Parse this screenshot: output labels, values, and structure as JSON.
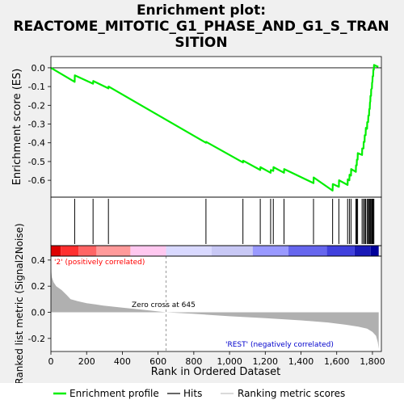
{
  "title_lines": [
    "Enrichment plot:",
    "REACTOME_MITOTIC_G1_PHASE_AND_G1_S_TRAN",
    "SITION"
  ],
  "colors": {
    "es_line": "#00ee00",
    "hits": "#000000",
    "metric_fill": "#b0b0b0",
    "pos_text": "#ff0000",
    "neg_text": "#0000cc",
    "zero_line": "#808080"
  },
  "chart_data": [
    {
      "type": "line",
      "name": "enrichment_profile",
      "ylabel": "Enrichment score (ES)",
      "xlim": [
        0,
        1850
      ],
      "ylim": [
        -0.69,
        0.06
      ],
      "y_ticks": [
        0.0,
        -0.1,
        -0.2,
        -0.3,
        -0.4,
        -0.5,
        -0.6
      ],
      "y_tick_labels": [
        "0.0",
        "-0.1",
        "-0.2",
        "-0.3",
        "-0.4",
        "-0.5",
        "-0.6"
      ],
      "zero_line": true,
      "points": [
        [
          0,
          0.0
        ],
        [
          133,
          -0.075
        ],
        [
          134,
          -0.04
        ],
        [
          236,
          -0.085
        ],
        [
          237,
          -0.07
        ],
        [
          322,
          -0.11
        ],
        [
          323,
          -0.1
        ],
        [
          868,
          -0.4
        ],
        [
          869,
          -0.395
        ],
        [
          1075,
          -0.505
        ],
        [
          1076,
          -0.495
        ],
        [
          1172,
          -0.545
        ],
        [
          1173,
          -0.53
        ],
        [
          1230,
          -0.56
        ],
        [
          1231,
          -0.545
        ],
        [
          1245,
          -0.55
        ],
        [
          1246,
          -0.53
        ],
        [
          1305,
          -0.56
        ],
        [
          1306,
          -0.54
        ],
        [
          1470,
          -0.615
        ],
        [
          1471,
          -0.585
        ],
        [
          1577,
          -0.655
        ],
        [
          1578,
          -0.62
        ],
        [
          1612,
          -0.635
        ],
        [
          1613,
          -0.6
        ],
        [
          1661,
          -0.625
        ],
        [
          1662,
          -0.595
        ],
        [
          1671,
          -0.6
        ],
        [
          1672,
          -0.57
        ],
        [
          1680,
          -0.575
        ],
        [
          1681,
          -0.54
        ],
        [
          1707,
          -0.555
        ],
        [
          1708,
          -0.52
        ],
        [
          1712,
          -0.52
        ],
        [
          1713,
          -0.49
        ],
        [
          1717,
          -0.49
        ],
        [
          1718,
          -0.455
        ],
        [
          1742,
          -0.465
        ],
        [
          1743,
          -0.43
        ],
        [
          1750,
          -0.43
        ],
        [
          1751,
          -0.395
        ],
        [
          1756,
          -0.395
        ],
        [
          1757,
          -0.36
        ],
        [
          1762,
          -0.36
        ],
        [
          1763,
          -0.32
        ],
        [
          1770,
          -0.325
        ],
        [
          1771,
          -0.29
        ],
        [
          1776,
          -0.29
        ],
        [
          1777,
          -0.255
        ],
        [
          1781,
          -0.255
        ],
        [
          1782,
          -0.22
        ],
        [
          1785,
          -0.22
        ],
        [
          1786,
          -0.185
        ],
        [
          1788,
          -0.18
        ],
        [
          1789,
          -0.15
        ],
        [
          1792,
          -0.15
        ],
        [
          1793,
          -0.115
        ],
        [
          1797,
          -0.11
        ],
        [
          1798,
          -0.08
        ],
        [
          1800,
          -0.075
        ],
        [
          1801,
          -0.045
        ],
        [
          1804,
          -0.045
        ],
        [
          1805,
          -0.01
        ],
        [
          1808,
          -0.01
        ],
        [
          1809,
          0.015
        ],
        [
          1833,
          0.005
        ]
      ]
    },
    {
      "type": "hits",
      "name": "hits",
      "xlim": [
        0,
        1850
      ],
      "positions": [
        133,
        236,
        322,
        868,
        1075,
        1172,
        1230,
        1245,
        1305,
        1470,
        1577,
        1612,
        1661,
        1671,
        1680,
        1707,
        1712,
        1717,
        1742,
        1750,
        1756,
        1762,
        1770,
        1776,
        1781,
        1785,
        1788,
        1792,
        1797,
        1800,
        1804,
        1808
      ]
    },
    {
      "type": "heatmap",
      "name": "rank_color_bar",
      "xlim": [
        0,
        1850
      ],
      "segments": [
        {
          "from": 0,
          "to": 55,
          "color": "#dd0000"
        },
        {
          "from": 55,
          "to": 155,
          "color": "#ff3030"
        },
        {
          "from": 155,
          "to": 255,
          "color": "#ff6464"
        },
        {
          "from": 255,
          "to": 445,
          "color": "#ff9a9a"
        },
        {
          "from": 445,
          "to": 645,
          "color": "#ffc8f0"
        },
        {
          "from": 645,
          "to": 900,
          "color": "#d9d9ff"
        },
        {
          "from": 900,
          "to": 1130,
          "color": "#c8c8f5"
        },
        {
          "from": 1130,
          "to": 1330,
          "color": "#9999ff"
        },
        {
          "from": 1330,
          "to": 1545,
          "color": "#6666ee"
        },
        {
          "from": 1545,
          "to": 1700,
          "color": "#4040dd"
        },
        {
          "from": 1700,
          "to": 1790,
          "color": "#1a1ab8"
        },
        {
          "from": 1790,
          "to": 1835,
          "color": "#00009a"
        }
      ]
    },
    {
      "type": "area",
      "name": "ranked_list_metric",
      "xlabel": "Rank in Ordered Dataset",
      "ylabel": "Ranked list metric (Signal2Noise)",
      "xlim": [
        0,
        1850
      ],
      "ylim": [
        -0.3,
        0.43
      ],
      "x_ticks": [
        0,
        200,
        400,
        600,
        800,
        1000,
        1200,
        1400,
        1600,
        1800
      ],
      "x_tick_labels": [
        "0",
        "200",
        "400",
        "600",
        "800",
        "1,000",
        "1,200",
        "1,400",
        "1,600",
        "1,800"
      ],
      "y_ticks": [
        0.4,
        0.2,
        0.0,
        -0.2
      ],
      "y_tick_labels": [
        "0.4",
        "0.2",
        "0.0",
        "-0.2"
      ],
      "points": [
        [
          0,
          0.34
        ],
        [
          5,
          0.27
        ],
        [
          15,
          0.23
        ],
        [
          30,
          0.2
        ],
        [
          60,
          0.17
        ],
        [
          90,
          0.13
        ],
        [
          110,
          0.1
        ],
        [
          150,
          0.085
        ],
        [
          200,
          0.07
        ],
        [
          250,
          0.06
        ],
        [
          300,
          0.05
        ],
        [
          400,
          0.035
        ],
        [
          500,
          0.022
        ],
        [
          645,
          0.0
        ],
        [
          800,
          -0.012
        ],
        [
          1000,
          -0.03
        ],
        [
          1200,
          -0.045
        ],
        [
          1400,
          -0.062
        ],
        [
          1550,
          -0.078
        ],
        [
          1650,
          -0.095
        ],
        [
          1720,
          -0.11
        ],
        [
          1770,
          -0.125
        ],
        [
          1800,
          -0.15
        ],
        [
          1820,
          -0.18
        ],
        [
          1830,
          -0.23
        ],
        [
          1835,
          -0.28
        ]
      ],
      "zero_cross": 645,
      "annotations": {
        "zero_cross": "Zero cross at 645",
        "positive": "'2' (positively correlated)",
        "negative": "'REST' (negatively correlated)"
      }
    }
  ],
  "legend": {
    "items": [
      {
        "label": "Enrichment profile"
      },
      {
        "label": "Hits"
      },
      {
        "label": "Ranking metric scores"
      }
    ]
  }
}
